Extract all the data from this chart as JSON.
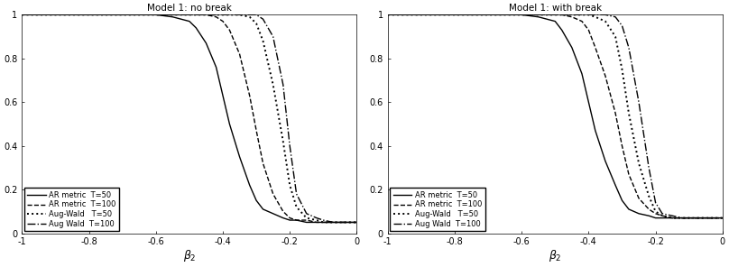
{
  "title_left": "Model 1: no break",
  "title_right": "Model 1: with break",
  "xlabel": "$\\beta_2$",
  "xlim": [
    -1,
    0
  ],
  "ylim": [
    0,
    1
  ],
  "xticks": [
    -1,
    -0.8,
    -0.6,
    -0.4,
    -0.2,
    0
  ],
  "yticks": [
    0,
    0.2,
    0.4,
    0.6,
    0.8,
    1.0
  ],
  "legend_labels": [
    "AR metric  T=50",
    "AR metric  T=100",
    "Aug-Wald   T=50",
    "Aug Wald  T=100"
  ],
  "linestyles": [
    "-",
    "--",
    ":",
    "-."
  ],
  "linewidths": [
    1.0,
    1.0,
    1.4,
    1.0
  ],
  "left_x": [
    -1.0,
    -0.95,
    -0.9,
    -0.85,
    -0.8,
    -0.75,
    -0.7,
    -0.65,
    -0.6,
    -0.55,
    -0.5,
    -0.48,
    -0.45,
    -0.42,
    -0.4,
    -0.38,
    -0.35,
    -0.32,
    -0.3,
    -0.28,
    -0.25,
    -0.22,
    -0.2,
    -0.18,
    -0.15,
    -0.12,
    -0.1,
    -0.07,
    -0.05,
    -0.02,
    0.0
  ],
  "left_ar50": [
    1.0,
    1.0,
    1.0,
    1.0,
    1.0,
    1.0,
    1.0,
    1.0,
    1.0,
    0.99,
    0.97,
    0.94,
    0.87,
    0.76,
    0.63,
    0.5,
    0.35,
    0.22,
    0.15,
    0.11,
    0.09,
    0.07,
    0.06,
    0.06,
    0.05,
    0.05,
    0.05,
    0.05,
    0.05,
    0.05,
    0.05
  ],
  "left_ar100": [
    1.0,
    1.0,
    1.0,
    1.0,
    1.0,
    1.0,
    1.0,
    1.0,
    1.0,
    1.0,
    1.0,
    1.0,
    1.0,
    0.99,
    0.97,
    0.93,
    0.82,
    0.63,
    0.47,
    0.32,
    0.18,
    0.1,
    0.07,
    0.06,
    0.06,
    0.05,
    0.05,
    0.05,
    0.05,
    0.05,
    0.05
  ],
  "left_wald50": [
    1.0,
    1.0,
    1.0,
    1.0,
    1.0,
    1.0,
    1.0,
    1.0,
    1.0,
    1.0,
    1.0,
    1.0,
    1.0,
    1.0,
    1.0,
    1.0,
    1.0,
    0.99,
    0.96,
    0.88,
    0.68,
    0.42,
    0.22,
    0.12,
    0.07,
    0.06,
    0.05,
    0.05,
    0.05,
    0.05,
    0.05
  ],
  "left_wald100": [
    1.0,
    1.0,
    1.0,
    1.0,
    1.0,
    1.0,
    1.0,
    1.0,
    1.0,
    1.0,
    1.0,
    1.0,
    1.0,
    1.0,
    1.0,
    1.0,
    1.0,
    1.0,
    1.0,
    0.98,
    0.9,
    0.68,
    0.4,
    0.18,
    0.09,
    0.07,
    0.06,
    0.05,
    0.05,
    0.05,
    0.05
  ],
  "right_x": [
    -1.0,
    -0.95,
    -0.9,
    -0.85,
    -0.8,
    -0.75,
    -0.7,
    -0.65,
    -0.6,
    -0.55,
    -0.5,
    -0.48,
    -0.45,
    -0.42,
    -0.4,
    -0.38,
    -0.35,
    -0.32,
    -0.3,
    -0.28,
    -0.25,
    -0.22,
    -0.2,
    -0.18,
    -0.15,
    -0.12,
    -0.1,
    -0.07,
    -0.05,
    -0.02,
    0.0
  ],
  "right_ar50": [
    1.0,
    1.0,
    1.0,
    1.0,
    1.0,
    1.0,
    1.0,
    1.0,
    1.0,
    0.99,
    0.97,
    0.93,
    0.85,
    0.73,
    0.6,
    0.47,
    0.33,
    0.22,
    0.15,
    0.11,
    0.09,
    0.08,
    0.07,
    0.07,
    0.07,
    0.07,
    0.07,
    0.07,
    0.07,
    0.07,
    0.07
  ],
  "right_ar100": [
    1.0,
    1.0,
    1.0,
    1.0,
    1.0,
    1.0,
    1.0,
    1.0,
    1.0,
    1.0,
    1.0,
    1.0,
    0.99,
    0.97,
    0.93,
    0.85,
    0.72,
    0.55,
    0.4,
    0.27,
    0.16,
    0.11,
    0.09,
    0.08,
    0.07,
    0.07,
    0.07,
    0.07,
    0.07,
    0.07,
    0.07
  ],
  "right_wald50": [
    1.0,
    1.0,
    1.0,
    1.0,
    1.0,
    1.0,
    1.0,
    1.0,
    1.0,
    1.0,
    1.0,
    1.0,
    1.0,
    1.0,
    1.0,
    0.99,
    0.97,
    0.9,
    0.75,
    0.55,
    0.32,
    0.17,
    0.1,
    0.08,
    0.07,
    0.07,
    0.07,
    0.07,
    0.07,
    0.07,
    0.07
  ],
  "right_wald100": [
    1.0,
    1.0,
    1.0,
    1.0,
    1.0,
    1.0,
    1.0,
    1.0,
    1.0,
    1.0,
    1.0,
    1.0,
    1.0,
    1.0,
    1.0,
    1.0,
    1.0,
    0.99,
    0.95,
    0.85,
    0.6,
    0.3,
    0.14,
    0.09,
    0.08,
    0.07,
    0.07,
    0.07,
    0.07,
    0.07,
    0.07
  ]
}
